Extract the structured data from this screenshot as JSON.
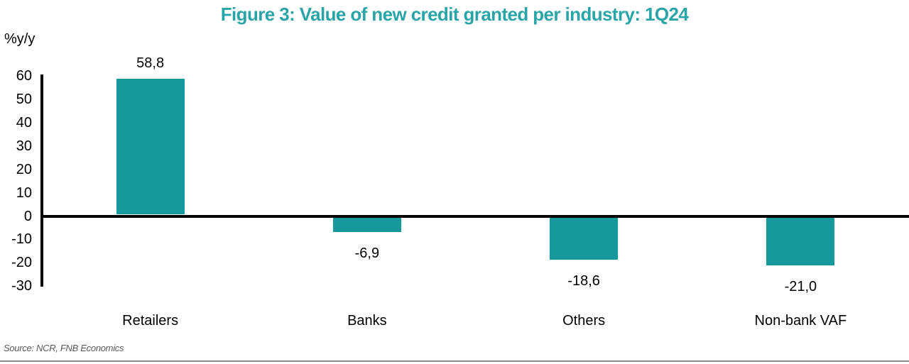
{
  "chart_data": {
    "type": "bar",
    "title": "Figure 3: Value of new credit granted per industry: 1Q24",
    "xlabel": "",
    "ylabel": "%y/y",
    "categories": [
      "Retailers",
      "Banks",
      "Others",
      "Non-bank VAF"
    ],
    "values": [
      58.8,
      -6.9,
      -18.6,
      -21.0
    ],
    "value_labels": [
      "58,8",
      "-6,9",
      "-18,6",
      "-21,0"
    ],
    "y_ticks": [
      60,
      50,
      40,
      30,
      20,
      10,
      0,
      -10,
      -20,
      -30
    ],
    "ylim": [
      -30,
      60
    ],
    "grid": false,
    "legend": false,
    "bar_color": "#15999C",
    "title_color": "#29A4A7",
    "axis_color": "#000000",
    "source": "Source: NCR, FNB Economics"
  }
}
